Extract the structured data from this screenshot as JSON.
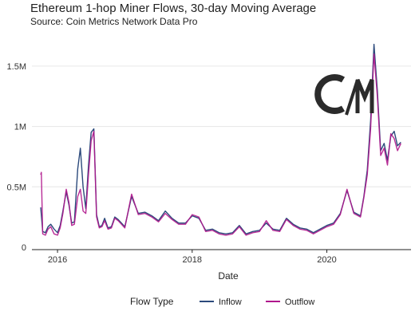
{
  "chart_data": {
    "type": "line",
    "title": "Ethereum 1-hop Miner Flows, 30-day Moving Average",
    "subtitle": "Source: Coin Metrics Network Data Pro",
    "xlabel": "Date",
    "ylabel": "",
    "xlim": [
      2015.62,
      2021.25
    ],
    "ylim": [
      0,
      1750000
    ],
    "x_ticks": [
      {
        "value": 2016,
        "label": "2016"
      },
      {
        "value": 2018,
        "label": "2018"
      },
      {
        "value": 2020,
        "label": "2020"
      }
    ],
    "y_ticks": [
      {
        "value": 0,
        "label": "0"
      },
      {
        "value": 500000,
        "label": "0.5M"
      },
      {
        "value": 1000000,
        "label": "1M"
      },
      {
        "value": 1500000,
        "label": "1.5M"
      }
    ],
    "grid": "horizontal",
    "legend": {
      "title": "Flow Type",
      "placement": "bottom"
    },
    "series": [
      {
        "name": "Inflow",
        "color": "#2c4a7c",
        "x": [
          2015.75,
          2015.78,
          2015.82,
          2015.86,
          2015.9,
          2015.95,
          2016.0,
          2016.04,
          2016.08,
          2016.13,
          2016.17,
          2016.21,
          2016.25,
          2016.3,
          2016.34,
          2016.38,
          2016.42,
          2016.46,
          2016.5,
          2016.54,
          2016.58,
          2016.62,
          2016.66,
          2016.7,
          2016.75,
          2016.8,
          2016.85,
          2016.9,
          2016.95,
          2017.0,
          2017.1,
          2017.2,
          2017.3,
          2017.4,
          2017.5,
          2017.6,
          2017.7,
          2017.8,
          2017.9,
          2018.0,
          2018.1,
          2018.2,
          2018.3,
          2018.4,
          2018.5,
          2018.6,
          2018.7,
          2018.8,
          2018.9,
          2019.0,
          2019.1,
          2019.2,
          2019.3,
          2019.4,
          2019.5,
          2019.6,
          2019.7,
          2019.8,
          2019.9,
          2020.0,
          2020.1,
          2020.2,
          2020.3,
          2020.4,
          2020.5,
          2020.55,
          2020.6,
          2020.65,
          2020.7,
          2020.75,
          2020.8,
          2020.85,
          2020.9,
          2020.95,
          2021.0,
          2021.05,
          2021.1
        ],
        "values": [
          330000,
          130000,
          120000,
          170000,
          190000,
          150000,
          120000,
          180000,
          300000,
          460000,
          350000,
          200000,
          210000,
          650000,
          820000,
          500000,
          320000,
          680000,
          950000,
          980000,
          270000,
          170000,
          180000,
          240000,
          160000,
          170000,
          250000,
          230000,
          200000,
          170000,
          420000,
          280000,
          290000,
          260000,
          220000,
          300000,
          240000,
          200000,
          200000,
          260000,
          240000,
          140000,
          150000,
          120000,
          110000,
          120000,
          180000,
          110000,
          130000,
          140000,
          200000,
          150000,
          140000,
          240000,
          190000,
          160000,
          150000,
          120000,
          150000,
          180000,
          200000,
          280000,
          470000,
          290000,
          260000,
          420000,
          640000,
          1050000,
          1680000,
          1300000,
          800000,
          860000,
          720000,
          920000,
          960000,
          840000,
          870000
        ]
      },
      {
        "name": "Outflow",
        "color": "#b0168c",
        "x": [
          2015.75,
          2015.76,
          2015.78,
          2015.82,
          2015.86,
          2015.9,
          2015.95,
          2016.0,
          2016.04,
          2016.08,
          2016.13,
          2016.17,
          2016.21,
          2016.25,
          2016.3,
          2016.34,
          2016.38,
          2016.42,
          2016.46,
          2016.5,
          2016.54,
          2016.58,
          2016.62,
          2016.66,
          2016.7,
          2016.75,
          2016.8,
          2016.85,
          2016.9,
          2016.95,
          2017.0,
          2017.1,
          2017.2,
          2017.3,
          2017.4,
          2017.5,
          2017.6,
          2017.7,
          2017.8,
          2017.9,
          2018.0,
          2018.1,
          2018.2,
          2018.3,
          2018.4,
          2018.5,
          2018.6,
          2018.7,
          2018.8,
          2018.9,
          2019.0,
          2019.1,
          2019.2,
          2019.3,
          2019.4,
          2019.5,
          2019.6,
          2019.7,
          2019.8,
          2019.9,
          2020.0,
          2020.1,
          2020.2,
          2020.3,
          2020.4,
          2020.5,
          2020.55,
          2020.6,
          2020.65,
          2020.7,
          2020.75,
          2020.8,
          2020.85,
          2020.9,
          2020.95,
          2021.0,
          2021.05,
          2021.1
        ],
        "values": [
          600000,
          620000,
          110000,
          100000,
          150000,
          170000,
          110000,
          100000,
          160000,
          280000,
          480000,
          370000,
          180000,
          190000,
          420000,
          480000,
          300000,
          280000,
          600000,
          880000,
          960000,
          250000,
          160000,
          170000,
          220000,
          150000,
          160000,
          240000,
          220000,
          190000,
          160000,
          440000,
          270000,
          280000,
          250000,
          210000,
          280000,
          230000,
          190000,
          190000,
          270000,
          250000,
          130000,
          140000,
          110000,
          100000,
          110000,
          170000,
          100000,
          120000,
          130000,
          220000,
          140000,
          130000,
          230000,
          180000,
          150000,
          140000,
          110000,
          140000,
          170000,
          190000,
          270000,
          480000,
          280000,
          250000,
          410000,
          600000,
          980000,
          1600000,
          1250000,
          760000,
          820000,
          680000,
          940000,
          900000,
          800000,
          860000
        ]
      }
    ]
  }
}
